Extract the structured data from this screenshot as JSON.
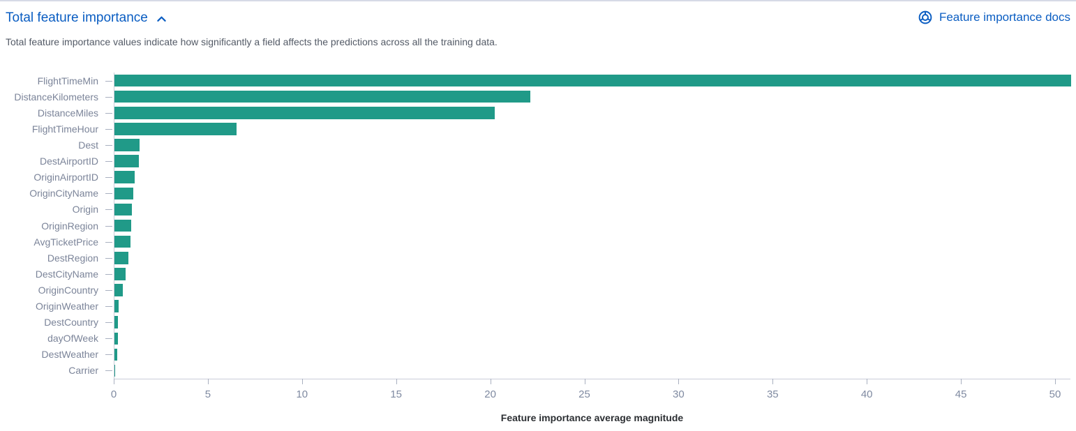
{
  "header": {
    "title": "Total feature importance",
    "collapse_icon": "chevron-up-icon",
    "docs_link": {
      "icon": "documentation-icon",
      "label": "Feature importance docs"
    }
  },
  "description": "Total feature importance values indicate how significantly a field affects the predictions across all the training data.",
  "colors": {
    "link_blue": "#0a5dc2",
    "bar_teal": "#209a88",
    "axis_line": "#c9cdd9",
    "tick": "#a9b0c0",
    "y_label": "#7b8499",
    "x_tick_label": "#7f8aa1",
    "description_text": "#535a66",
    "axis_title": "#2c2f33",
    "top_border": "#d6dae6"
  },
  "chart_data": {
    "type": "bar",
    "orientation": "horizontal",
    "title": "",
    "xlabel": "Feature importance average magnitude",
    "ylabel": "",
    "categories": [
      "FlightTimeMin",
      "DistanceKilometers",
      "DistanceMiles",
      "FlightTimeHour",
      "Dest",
      "DestAirportID",
      "OriginAirportID",
      "OriginCityName",
      "Origin",
      "OriginRegion",
      "AvgTicketPrice",
      "DestRegion",
      "DestCityName",
      "OriginCountry",
      "OriginWeather",
      "DestCountry",
      "dayOfWeek",
      "DestWeather",
      "Carrier"
    ],
    "values": [
      50.8,
      22.1,
      20.2,
      6.5,
      1.35,
      1.3,
      1.08,
      1.0,
      0.94,
      0.89,
      0.85,
      0.73,
      0.6,
      0.44,
      0.21,
      0.17,
      0.17,
      0.14,
      0.04
    ],
    "xticks": [
      0,
      5,
      10,
      15,
      20,
      25,
      30,
      35,
      40,
      45,
      50
    ],
    "xlim": [
      0,
      51
    ],
    "bar_color": "#209a88",
    "grid": false,
    "legend": "none"
  }
}
